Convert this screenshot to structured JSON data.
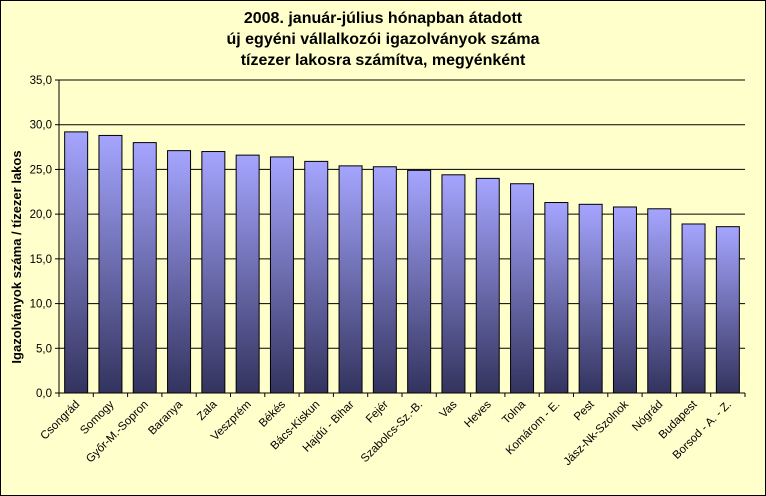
{
  "chart_data": {
    "type": "bar",
    "title_lines": [
      "2008. január-július hónapban átadott",
      "új egyéni vállalkozói  igazolványok száma",
      "tízezer lakosra számítva, megyénként"
    ],
    "ylabel": "Igazolványok száma / tízezer lakos",
    "xlabel": "",
    "ylim": [
      0,
      35
    ],
    "yticks": [
      "0,0",
      "5,0",
      "10,0",
      "15,0",
      "20,0",
      "25,0",
      "30,0",
      "35,0"
    ],
    "ytick_values": [
      0,
      5,
      10,
      15,
      20,
      25,
      30,
      35
    ],
    "grid": true,
    "categories": [
      "Csongrád",
      "Somogy",
      "Győr-M.-Sopron",
      "Baranya",
      "Zala",
      "Veszprém",
      "Békés",
      "Bács-Kiskun",
      "Hajdú - Bihar",
      "Fejér",
      "Szabolcs-Sz.-B.",
      "Vas",
      "Heves",
      "Tolna",
      "Komárom - E.",
      "Pest",
      "Jász-Nk-Szolnok",
      "Nógrád",
      "Budapest",
      "Borsod - A. - Z."
    ],
    "values": [
      29.2,
      28.8,
      28.0,
      27.1,
      27.0,
      26.6,
      26.4,
      25.9,
      25.4,
      25.3,
      24.9,
      24.4,
      24.0,
      23.4,
      21.3,
      21.1,
      20.8,
      20.6,
      18.9,
      18.6
    ],
    "colors": {
      "bar_top": "#a5a5ff",
      "bar_bottom": "#33335e",
      "plot_bg": "#ffffcc",
      "grid": "#000000"
    }
  }
}
